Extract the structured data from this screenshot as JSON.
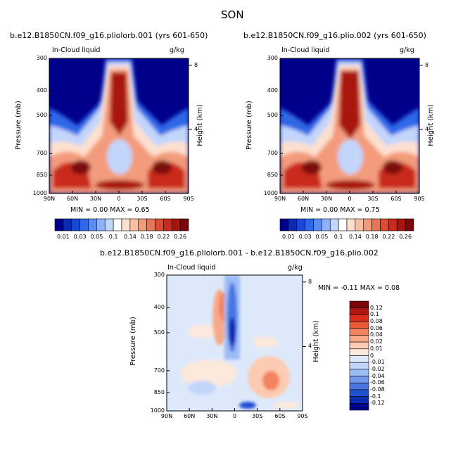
{
  "season_title": "SON",
  "panels": [
    {
      "title": "b.e12.B1850CN.f09_g16.pliolorb.001 (yrs 601-650)",
      "variable": "In-Cloud liquid",
      "units": "g/kg",
      "ylabel": "Pressure (mb)",
      "ylabel_right": "Height (km)",
      "minmax": "MIN =    0.00   MAX =    0.65"
    },
    {
      "title": "b.e12.B1850CN.f09_g16.plio.002 (yrs 601-650)",
      "variable": "In-Cloud liquid",
      "units": "g/kg",
      "ylabel": "Pressure (mb)",
      "ylabel_right": "Height (km)",
      "minmax": "MIN =    0.00   MAX =    0.75"
    },
    {
      "title": "b.e12.B1850CN.f09_g16.pliolorb.001 - b.e12.B1850CN.f09_g16.plio.002",
      "variable": "In-Cloud liquid",
      "units": "g/kg",
      "ylabel": "Pressure (mb)",
      "ylabel_right": "Height (km)",
      "minmax": "MIN =  -0.11   MAX =    0.08"
    }
  ],
  "x_ticks": [
    "90N",
    "60N",
    "30N",
    "0",
    "30S",
    "60S",
    "90S"
  ],
  "y_ticks": [
    "300",
    "400",
    "500",
    "700",
    "850",
    "1000"
  ],
  "height_ticks": [
    "8",
    "4"
  ],
  "colorbar_abs": {
    "labels": [
      "0.01",
      "0.03",
      "0.05",
      "0.1",
      "0.14",
      "0.18",
      "0.22",
      "0.26"
    ],
    "colors": [
      "#00008b",
      "#0a2ab2",
      "#1a47d4",
      "#2f68e6",
      "#5b8cf0",
      "#8db2f7",
      "#c2d6fb",
      "#ffffff",
      "#fde0cf",
      "#f9bfa3",
      "#f39b7b",
      "#ea7456",
      "#dd4b32",
      "#c92a1b",
      "#a81510",
      "#7d0708"
    ]
  },
  "colorbar_diff": {
    "labels": [
      "0.12",
      "0.1",
      "0.08",
      "0.06",
      "0.04",
      "0.02",
      "0.01",
      "0",
      "-0.01",
      "-0.02",
      "-0.04",
      "-0.06",
      "-0.08",
      "-0.1",
      "-0.12"
    ],
    "colors": [
      "#7d0708",
      "#b01511",
      "#d82f1c",
      "#eb5a37",
      "#f3825f",
      "#f8a987",
      "#fccbb1",
      "#fde8dc",
      "#dde9fb",
      "#c2d6fb",
      "#9cbcf5",
      "#7399ed",
      "#4a76e2",
      "#2150d2",
      "#0a2ab2",
      "#00008b"
    ]
  },
  "chart_data": [
    {
      "type": "heatmap",
      "title": "b.e12.B1850CN.f09_g16.pliolorb.001 (yrs 601-650)",
      "variable": "In-Cloud liquid",
      "units": "g/kg",
      "xlabel": "",
      "ylabel": "Pressure (mb)",
      "x_categories": [
        "90N",
        "60N",
        "30N",
        "0",
        "30S",
        "60S",
        "90S"
      ],
      "y_pressure_mb": [
        300,
        400,
        500,
        700,
        850,
        1000
      ],
      "min": 0.0,
      "max": 0.65,
      "contour_levels": [
        0.01,
        0.03,
        0.05,
        0.1,
        0.14,
        0.18,
        0.22,
        0.26
      ]
    },
    {
      "type": "heatmap",
      "title": "b.e12.B1850CN.f09_g16.plio.002 (yrs 601-650)",
      "variable": "In-Cloud liquid",
      "units": "g/kg",
      "xlabel": "",
      "ylabel": "Pressure (mb)",
      "x_categories": [
        "90N",
        "60N",
        "30N",
        "0",
        "30S",
        "60S",
        "90S"
      ],
      "y_pressure_mb": [
        300,
        400,
        500,
        700,
        850,
        1000
      ],
      "min": 0.0,
      "max": 0.75,
      "contour_levels": [
        0.01,
        0.03,
        0.05,
        0.1,
        0.14,
        0.18,
        0.22,
        0.26
      ]
    },
    {
      "type": "heatmap",
      "title": "b.e12.B1850CN.f09_g16.pliolorb.001 - b.e12.B1850CN.f09_g16.plio.002",
      "variable": "In-Cloud liquid",
      "units": "g/kg",
      "xlabel": "",
      "ylabel": "Pressure (mb)",
      "x_categories": [
        "90N",
        "60N",
        "30N",
        "0",
        "30S",
        "60S",
        "90S"
      ],
      "y_pressure_mb": [
        300,
        400,
        500,
        700,
        850,
        1000
      ],
      "min": -0.11,
      "max": 0.08,
      "contour_levels": [
        -0.12,
        -0.1,
        -0.08,
        -0.06,
        -0.04,
        -0.02,
        -0.01,
        0,
        0.01,
        0.02,
        0.04,
        0.06,
        0.08,
        0.1,
        0.12
      ]
    }
  ]
}
